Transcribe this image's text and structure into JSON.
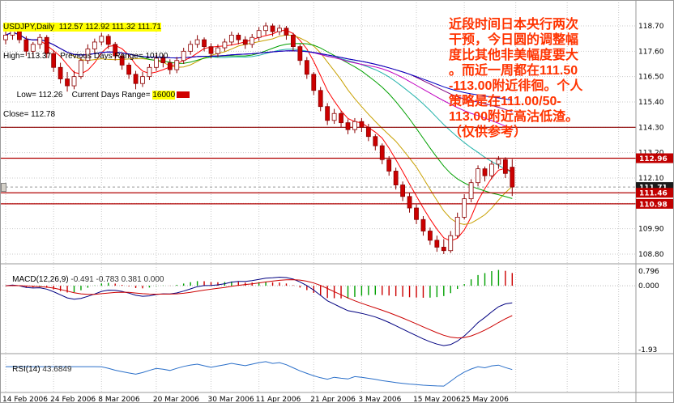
{
  "info_panel": {
    "symbol_line": "USDJPY,Daily  112.57 112.92 111.32 111.71",
    "high_line": "High= 113.37    Previous Days Range= 10100",
    "low_line_prefix": "Low= 112.26    Current Days Range= ",
    "range_value": "16000",
    "close_line": "Close= 112.78"
  },
  "annotation": {
    "text": "近段时间日本央行两次\n干预，今日圆的调整幅\n度比其他非美幅度要大\n。而近一周都在111.50\n-113.00附近徘徊。个人\n策略是在111.00/50-\n113.00附近高沽低渣。\n（仅供参考）",
    "color": "#ff3300"
  },
  "price_axis": {
    "labels": [
      {
        "text": "118.70",
        "price": 118.7
      },
      {
        "text": "117.60",
        "price": 117.6
      },
      {
        "text": "116.50",
        "price": 116.5
      },
      {
        "text": "115.40",
        "price": 115.4
      },
      {
        "text": "114.30",
        "price": 114.3
      },
      {
        "text": "113.20",
        "price": 113.2
      },
      {
        "text": "112.10",
        "price": 112.1
      },
      {
        "text": "109.90",
        "price": 109.9
      },
      {
        "text": "108.80",
        "price": 108.8
      }
    ],
    "badges": [
      {
        "text": "112.96",
        "price": 112.96,
        "color": "#c00000"
      },
      {
        "text": "111.71",
        "price": 111.71,
        "color": "#1a1a1a"
      },
      {
        "text": "111.46",
        "price": 111.46,
        "color": "#c00000"
      },
      {
        "text": "110.98",
        "price": 110.98,
        "color": "#c00000"
      }
    ]
  },
  "macd_panel": {
    "label": "MACD(12,26,9)",
    "values": " -0.491 -0.783 0.381 0.000",
    "scale_labels": [
      "0.796",
      "0.000",
      "-1.93"
    ]
  },
  "rsi_panel": {
    "label": "RSI(14)",
    "value": " 43.6849"
  },
  "chart_data": [
    {
      "type": "candlestick",
      "symbol": "USDJPY",
      "timeframe": "Daily",
      "ylim": [
        108.8,
        118.7
      ],
      "gridline_step": 1.1,
      "x_tick_labels": [
        "14 Feb 2006",
        "24 Feb 2006",
        "8 Mar 2006",
        "20 Mar 2006",
        "30 Mar 2006",
        "11 Apr 2006",
        "21 Apr 2006",
        "3 May 2006",
        "15 May 2006",
        "25 May 2006"
      ],
      "x_tick_indices": [
        0,
        7,
        14,
        22,
        30,
        37,
        45,
        52,
        60,
        67
      ],
      "current_price": 111.71,
      "horizontal_lines": [
        {
          "price": 114.3,
          "color": "#8b0000"
        },
        {
          "price": 112.96,
          "color": "#b00000"
        },
        {
          "price": 111.46,
          "color": "#b00000"
        },
        {
          "price": 110.98,
          "color": "#b00000"
        }
      ],
      "moving_averages": [
        {
          "period": 5,
          "color": "#ff0000"
        },
        {
          "period": 10,
          "color": "#c8a000"
        },
        {
          "period": 20,
          "color": "#00a000"
        },
        {
          "period": 30,
          "color": "#20b2aa"
        },
        {
          "period": 45,
          "color": "#c000c0"
        },
        {
          "period": 60,
          "color": "#800080"
        },
        {
          "period": 75,
          "color": "#0000c0"
        }
      ],
      "candles": [
        [
          118.1,
          118.45,
          117.9,
          118.3
        ],
        [
          118.3,
          118.75,
          118.1,
          118.55
        ],
        [
          118.55,
          118.7,
          117.95,
          118.1
        ],
        [
          118.1,
          118.25,
          117.4,
          117.6
        ],
        [
          117.6,
          118.0,
          117.35,
          117.9
        ],
        [
          117.9,
          118.35,
          117.7,
          118.2
        ],
        [
          118.2,
          118.3,
          117.3,
          117.5
        ],
        [
          117.5,
          117.65,
          116.7,
          116.9
        ],
        [
          116.9,
          117.1,
          116.2,
          116.4
        ],
        [
          116.4,
          116.7,
          115.85,
          116.1
        ],
        [
          116.1,
          116.75,
          115.95,
          116.5
        ],
        [
          116.5,
          117.35,
          116.4,
          117.2
        ],
        [
          117.2,
          117.9,
          117.05,
          117.7
        ],
        [
          117.7,
          118.15,
          117.5,
          118.0
        ],
        [
          118.0,
          118.4,
          117.85,
          118.25
        ],
        [
          118.25,
          118.35,
          117.7,
          117.9
        ],
        [
          117.9,
          118.0,
          117.2,
          117.4
        ],
        [
          117.4,
          117.55,
          116.8,
          117.0
        ],
        [
          117.0,
          117.1,
          116.4,
          116.6
        ],
        [
          116.6,
          116.75,
          115.95,
          116.2
        ],
        [
          116.2,
          116.7,
          116.05,
          116.5
        ],
        [
          116.5,
          117.05,
          116.35,
          116.9
        ],
        [
          116.9,
          117.45,
          116.75,
          117.3
        ],
        [
          117.3,
          117.45,
          116.9,
          117.1
        ],
        [
          117.1,
          117.25,
          116.6,
          116.8
        ],
        [
          116.8,
          117.35,
          116.65,
          117.2
        ],
        [
          117.2,
          117.75,
          117.05,
          117.6
        ],
        [
          117.6,
          118.05,
          117.45,
          117.9
        ],
        [
          117.9,
          118.3,
          117.75,
          118.1
        ],
        [
          118.1,
          118.2,
          117.6,
          117.8
        ],
        [
          117.8,
          117.95,
          117.3,
          117.5
        ],
        [
          117.5,
          117.9,
          117.35,
          117.75
        ],
        [
          117.75,
          118.15,
          117.6,
          118.0
        ],
        [
          118.0,
          118.45,
          117.85,
          118.3
        ],
        [
          118.3,
          118.4,
          117.9,
          118.1
        ],
        [
          118.1,
          118.25,
          117.7,
          117.9
        ],
        [
          117.9,
          118.35,
          117.75,
          118.2
        ],
        [
          118.2,
          118.65,
          118.05,
          118.5
        ],
        [
          118.5,
          118.85,
          118.3,
          118.7
        ],
        [
          118.7,
          118.8,
          118.25,
          118.45
        ],
        [
          118.45,
          118.75,
          118.3,
          118.6
        ],
        [
          118.6,
          118.7,
          118.1,
          118.3
        ],
        [
          118.3,
          118.4,
          117.6,
          117.8
        ],
        [
          117.8,
          117.9,
          117.0,
          117.2
        ],
        [
          117.2,
          117.35,
          116.4,
          116.6
        ],
        [
          116.6,
          116.7,
          115.7,
          115.9
        ],
        [
          115.9,
          116.05,
          115.0,
          115.2
        ],
        [
          115.2,
          115.35,
          114.4,
          114.6
        ],
        [
          114.6,
          115.1,
          114.45,
          114.9
        ],
        [
          114.9,
          115.0,
          114.3,
          114.5
        ],
        [
          114.5,
          114.65,
          114.0,
          114.2
        ],
        [
          114.2,
          114.7,
          114.05,
          114.55
        ],
        [
          114.55,
          114.7,
          114.1,
          114.3
        ],
        [
          114.3,
          114.45,
          113.7,
          113.9
        ],
        [
          113.9,
          114.0,
          113.3,
          113.5
        ],
        [
          113.5,
          113.6,
          112.7,
          112.9
        ],
        [
          112.9,
          113.05,
          112.2,
          112.4
        ],
        [
          112.4,
          112.55,
          111.6,
          111.8
        ],
        [
          111.8,
          111.95,
          111.1,
          111.3
        ],
        [
          111.3,
          111.45,
          110.6,
          110.8
        ],
        [
          110.8,
          110.95,
          110.1,
          110.3
        ],
        [
          110.3,
          110.45,
          109.6,
          109.8
        ],
        [
          109.8,
          109.95,
          109.2,
          109.4
        ],
        [
          109.4,
          109.6,
          108.9,
          109.1
        ],
        [
          109.1,
          109.45,
          108.8,
          108.95
        ],
        [
          108.95,
          109.8,
          108.85,
          109.6
        ],
        [
          109.6,
          110.6,
          109.5,
          110.4
        ],
        [
          110.4,
          111.4,
          110.3,
          111.2
        ],
        [
          111.2,
          112.05,
          111.05,
          111.9
        ],
        [
          111.9,
          112.65,
          111.75,
          112.5
        ],
        [
          112.5,
          112.6,
          111.95,
          112.2
        ],
        [
          112.2,
          112.85,
          112.05,
          112.7
        ],
        [
          112.7,
          113.05,
          112.5,
          112.9
        ],
        [
          112.9,
          113.0,
          112.1,
          112.3
        ],
        [
          112.57,
          112.92,
          111.32,
          111.71
        ]
      ]
    },
    {
      "type": "macd",
      "params": "12,26,9",
      "displayed_values": [
        -0.491,
        -0.783,
        0.381,
        0.0
      ],
      "scale": [
        0.796,
        0.0,
        -1.93
      ]
    },
    {
      "type": "rsi",
      "period": 14,
      "value": 43.6849
    }
  ]
}
